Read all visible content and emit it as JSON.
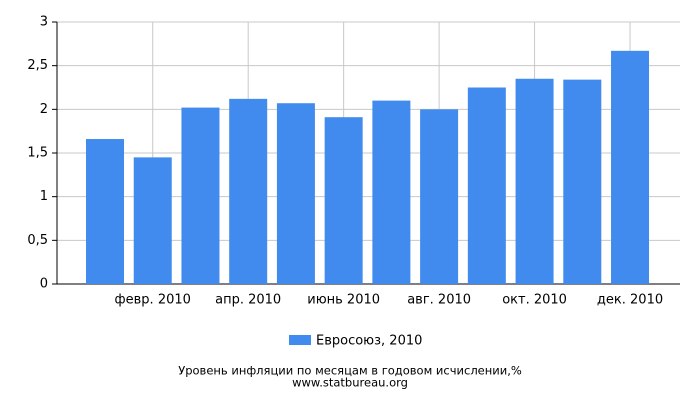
{
  "chart_data": {
    "type": "bar",
    "categories": [
      null,
      "февр. 2010",
      null,
      "апр. 2010",
      null,
      "июнь 2010",
      null,
      "авг. 2010",
      null,
      "окт. 2010",
      null,
      "дек. 2010"
    ],
    "series": [
      {
        "name": "Евросоюз, 2010",
        "color": "#428bee",
        "values": [
          1.66,
          1.45,
          2.02,
          2.12,
          2.07,
          1.91,
          2.1,
          2.0,
          2.25,
          2.35,
          2.34,
          2.67
        ]
      }
    ],
    "ylim": [
      0,
      3
    ],
    "yticks": [
      0,
      {
        "value": 0.5,
        "label": "0,5"
      },
      1,
      {
        "value": 1.5,
        "label": "1,5"
      },
      2,
      {
        "value": 2.5,
        "label": "2,5"
      },
      3
    ],
    "grid": true,
    "footer": [
      "Уровень инфляции по месяцам в годовом исчислении,%",
      "www.statbureau.org"
    ]
  }
}
